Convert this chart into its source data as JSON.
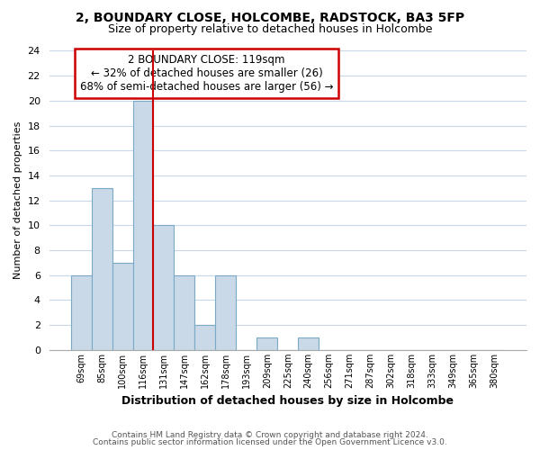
{
  "title": "2, BOUNDARY CLOSE, HOLCOMBE, RADSTOCK, BA3 5FP",
  "subtitle": "Size of property relative to detached houses in Holcombe",
  "xlabel": "Distribution of detached houses by size in Holcombe",
  "ylabel": "Number of detached properties",
  "bar_labels": [
    "69sqm",
    "85sqm",
    "100sqm",
    "116sqm",
    "131sqm",
    "147sqm",
    "162sqm",
    "178sqm",
    "193sqm",
    "209sqm",
    "225sqm",
    "240sqm",
    "256sqm",
    "271sqm",
    "287sqm",
    "302sqm",
    "318sqm",
    "333sqm",
    "349sqm",
    "365sqm",
    "380sqm"
  ],
  "bar_values": [
    6,
    13,
    7,
    20,
    10,
    6,
    2,
    6,
    0,
    1,
    0,
    1,
    0,
    0,
    0,
    0,
    0,
    0,
    0,
    0,
    0
  ],
  "bar_color": "#c9d9e8",
  "bar_edge_color": "#7aaac8",
  "vline_color": "#cc0000",
  "ylim": [
    0,
    24
  ],
  "yticks": [
    0,
    2,
    4,
    6,
    8,
    10,
    12,
    14,
    16,
    18,
    20,
    22,
    24
  ],
  "annotation_title": "2 BOUNDARY CLOSE: 119sqm",
  "annotation_line1": "← 32% of detached houses are smaller (26)",
  "annotation_line2": "68% of semi-detached houses are larger (56) →",
  "annotation_box_color": "#ffffff",
  "annotation_box_edge": "#cc0000",
  "footer_line1": "Contains HM Land Registry data © Crown copyright and database right 2024.",
  "footer_line2": "Contains public sector information licensed under the Open Government Licence v3.0.",
  "background_color": "#ffffff",
  "grid_color": "#c8d8e8"
}
